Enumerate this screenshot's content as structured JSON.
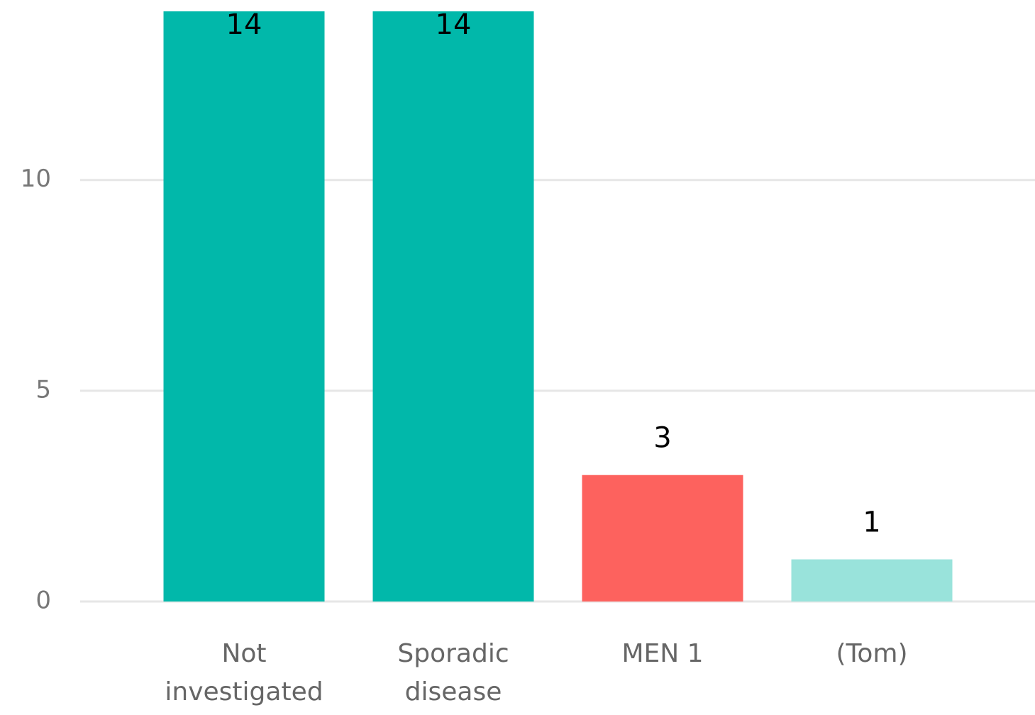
{
  "chart_data": {
    "type": "bar",
    "categories": [
      "Not investigated",
      "Sporadic disease",
      "MEN 1",
      "(Tom)"
    ],
    "values": [
      14,
      14,
      3,
      1
    ],
    "colors": [
      "#01b8aa",
      "#01b8aa",
      "#fd625e",
      "#99e3db"
    ],
    "ylim": [
      0,
      14
    ],
    "yticks": [
      0,
      5,
      10
    ],
    "grid": true
  }
}
